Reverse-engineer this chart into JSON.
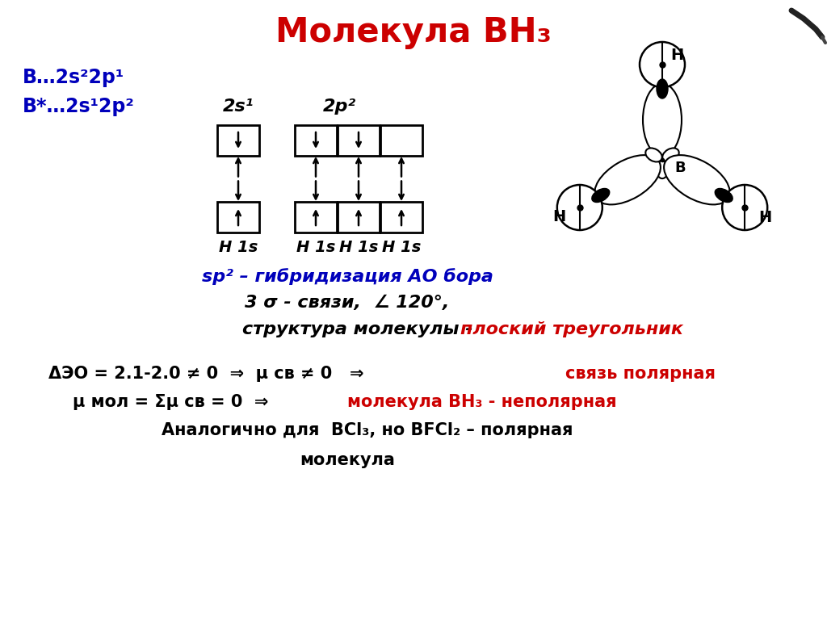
{
  "title": "Молекула BH₃",
  "title_color": "#cc0000",
  "title_fontsize": 28,
  "bg_color": "#ffffff",
  "line1_blue": "В…2s²2p¹",
  "line2_blue": "В*…2s¹2p²",
  "label_2s1": "2s¹",
  "label_2p2": "2p²",
  "label_H1s": "H 1s",
  "sp2_line": "sp² – гибридизация АО бора",
  "line_sigma": "3 σ - связи,  ∠ 120°,",
  "line_struct_black": "структура молекулы - ",
  "ploskiy": "плоский треугольник",
  "delta_eo_black": "ΔЭО = 2.1-2.0 ≠ 0  ⇒  μ св ≠ 0   ⇒  ",
  "svyaz_polyarnaya": "связь полярная",
  "mu_line_black": "μ мол = Σμ св = 0  ⇒",
  "mu_line_red": "молекула BH₃ - неполярная",
  "analog_line": "Аналогично для  BCl₃, но BFCl₂ – полярная",
  "mol_line": "молекула"
}
